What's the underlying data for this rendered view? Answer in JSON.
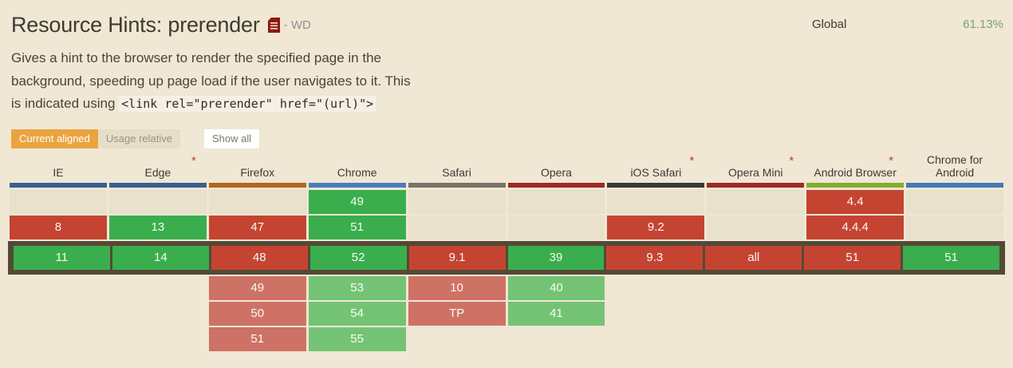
{
  "header": {
    "title": "Resource Hints: prerender",
    "spec_status": "- WD",
    "global_label": "Global",
    "global_percent": "61.13%"
  },
  "description": {
    "line1": "Gives a hint to the browser to render the specified page in the",
    "line2": "background, speeding up page load if the user navigates to it. This",
    "line3_prefix": "is indicated using ",
    "code": "<link rel=\"prerender\" href=\"(url)\">"
  },
  "controls": {
    "current_aligned": "Current aligned",
    "usage_relative": "Usage relative",
    "show_all": "Show all"
  },
  "colors": {
    "page_bg": "#f0e7d4",
    "empty_cell": "#e9e1cc",
    "supported": "#3aae4c",
    "unsupported": "#c44431",
    "supported_future": "#74c374",
    "unsupported_future": "#ce7265",
    "current_row_border": "#544936",
    "accent_orange": "#e9a440",
    "percent_green": "#7aa570",
    "doc_icon_red": "#8c1a11"
  },
  "table": {
    "browsers": [
      {
        "name": "IE",
        "color": "#36618e",
        "asterisk": false
      },
      {
        "name": "Edge",
        "color": "#36618e",
        "asterisk": true
      },
      {
        "name": "Firefox",
        "color": "#b4661f",
        "asterisk": false
      },
      {
        "name": "Chrome",
        "color": "#4a7dc0",
        "asterisk": false
      },
      {
        "name": "Safari",
        "color": "#797467",
        "asterisk": false
      },
      {
        "name": "Opera",
        "color": "#9e2b23",
        "asterisk": false
      },
      {
        "name": "iOS Safari",
        "color": "#3a3935",
        "asterisk": true
      },
      {
        "name": "Opera Mini",
        "color": "#9e2b23",
        "asterisk": true
      },
      {
        "name": "Android Browser",
        "color": "#84ac31",
        "asterisk": true
      },
      {
        "name": "Chrome for Android",
        "color": "#4478b3",
        "asterisk": false
      }
    ],
    "rows": [
      {
        "current": false,
        "cells": [
          {
            "v": "",
            "t": "empty"
          },
          {
            "v": "",
            "t": "empty"
          },
          {
            "v": "",
            "t": "empty"
          },
          {
            "v": "49",
            "t": "yes"
          },
          {
            "v": "",
            "t": "empty"
          },
          {
            "v": "",
            "t": "empty"
          },
          {
            "v": "",
            "t": "empty"
          },
          {
            "v": "",
            "t": "empty"
          },
          {
            "v": "4.4",
            "t": "no"
          },
          {
            "v": "",
            "t": "empty"
          }
        ]
      },
      {
        "current": false,
        "cells": [
          {
            "v": "8",
            "t": "no"
          },
          {
            "v": "13",
            "t": "yes"
          },
          {
            "v": "47",
            "t": "no"
          },
          {
            "v": "51",
            "t": "yes"
          },
          {
            "v": "",
            "t": "empty"
          },
          {
            "v": "",
            "t": "empty"
          },
          {
            "v": "9.2",
            "t": "no"
          },
          {
            "v": "",
            "t": "empty"
          },
          {
            "v": "4.4.4",
            "t": "no"
          },
          {
            "v": "",
            "t": "empty"
          }
        ]
      },
      {
        "current": true,
        "cells": [
          {
            "v": "11",
            "t": "yes"
          },
          {
            "v": "14",
            "t": "yes"
          },
          {
            "v": "48",
            "t": "no"
          },
          {
            "v": "52",
            "t": "yes"
          },
          {
            "v": "9.1",
            "t": "no"
          },
          {
            "v": "39",
            "t": "yes"
          },
          {
            "v": "9.3",
            "t": "no"
          },
          {
            "v": "all",
            "t": "no"
          },
          {
            "v": "51",
            "t": "no"
          },
          {
            "v": "51",
            "t": "yes"
          }
        ]
      },
      {
        "current": false,
        "cells": [
          {
            "v": "",
            "t": "none"
          },
          {
            "v": "",
            "t": "none"
          },
          {
            "v": "49",
            "t": "no-future"
          },
          {
            "v": "53",
            "t": "yes-future"
          },
          {
            "v": "10",
            "t": "no-future"
          },
          {
            "v": "40",
            "t": "yes-future"
          },
          {
            "v": "",
            "t": "none"
          },
          {
            "v": "",
            "t": "none"
          },
          {
            "v": "",
            "t": "none"
          },
          {
            "v": "",
            "t": "none"
          }
        ]
      },
      {
        "current": false,
        "cells": [
          {
            "v": "",
            "t": "none"
          },
          {
            "v": "",
            "t": "none"
          },
          {
            "v": "50",
            "t": "no-future"
          },
          {
            "v": "54",
            "t": "yes-future"
          },
          {
            "v": "TP",
            "t": "no-future"
          },
          {
            "v": "41",
            "t": "yes-future"
          },
          {
            "v": "",
            "t": "none"
          },
          {
            "v": "",
            "t": "none"
          },
          {
            "v": "",
            "t": "none"
          },
          {
            "v": "",
            "t": "none"
          }
        ]
      },
      {
        "current": false,
        "cells": [
          {
            "v": "",
            "t": "none"
          },
          {
            "v": "",
            "t": "none"
          },
          {
            "v": "51",
            "t": "no-future"
          },
          {
            "v": "55",
            "t": "yes-future"
          },
          {
            "v": "",
            "t": "none"
          },
          {
            "v": "",
            "t": "none"
          },
          {
            "v": "",
            "t": "none"
          },
          {
            "v": "",
            "t": "none"
          },
          {
            "v": "",
            "t": "none"
          },
          {
            "v": "",
            "t": "none"
          }
        ]
      }
    ]
  }
}
